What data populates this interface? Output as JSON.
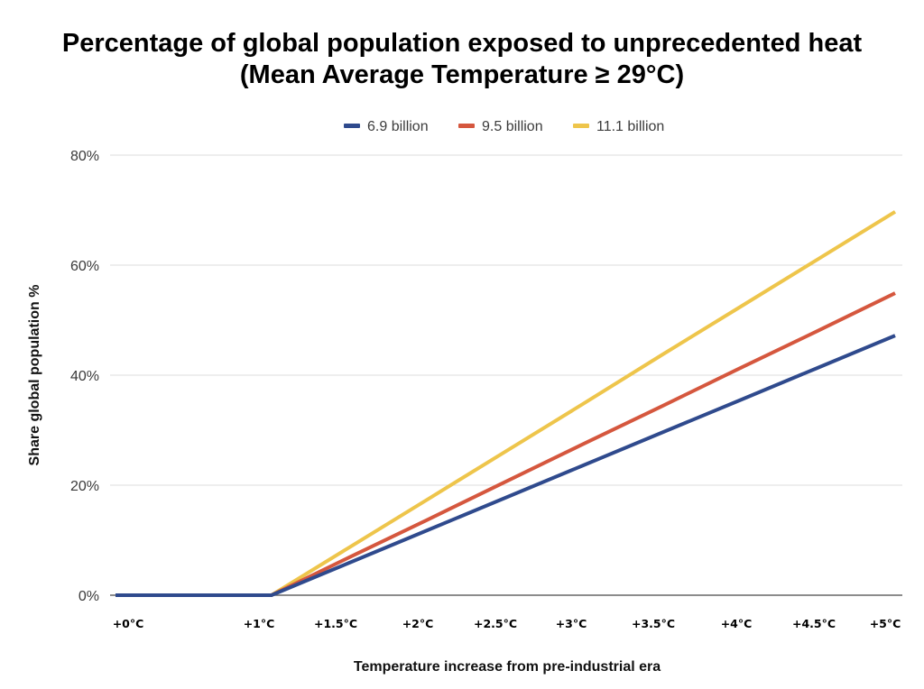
{
  "chart_data": {
    "type": "line",
    "title": "Percentage of global population exposed to unprecedented heat",
    "subtitle": "(Mean Average Temperature ≥ 29°C)",
    "xlabel": "Temperature increase from pre-industrial era",
    "ylabel": "Share global population %",
    "x_tick_labels": [
      "+0°C",
      "+1°C",
      "+1.5°C",
      "+2°C",
      "+2.5°C",
      "+3°C",
      "+3.5°C",
      "+4°C",
      "+4.5°C",
      "+5°C"
    ],
    "x": [
      0,
      1,
      1.5,
      2,
      2.5,
      3,
      3.5,
      4,
      4.5,
      5
    ],
    "xlim": [
      0,
      5
    ],
    "y_ticks": [
      0,
      20,
      40,
      60,
      80
    ],
    "y_tick_labels": [
      "0%",
      "20%",
      "40%",
      "60%",
      "80%"
    ],
    "ylim": [
      0,
      80
    ],
    "grid": true,
    "legend_position": "top-center",
    "series": [
      {
        "name": "6.9 billion",
        "color": "#2f4a8d",
        "values": [
          0,
          0,
          5.9,
          11.8,
          17.7,
          23.6,
          29.5,
          35.4,
          41.3,
          47.2
        ]
      },
      {
        "name": "9.5 billion",
        "color": "#d5573e",
        "values": [
          0,
          0,
          6.9,
          13.7,
          20.6,
          27.5,
          34.3,
          41.2,
          48.0,
          54.9
        ]
      },
      {
        "name": "11.1 billion",
        "color": "#eec54b",
        "values": [
          0,
          0,
          8.7,
          17.4,
          26.1,
          34.8,
          43.6,
          52.3,
          61.0,
          69.7
        ]
      }
    ]
  }
}
